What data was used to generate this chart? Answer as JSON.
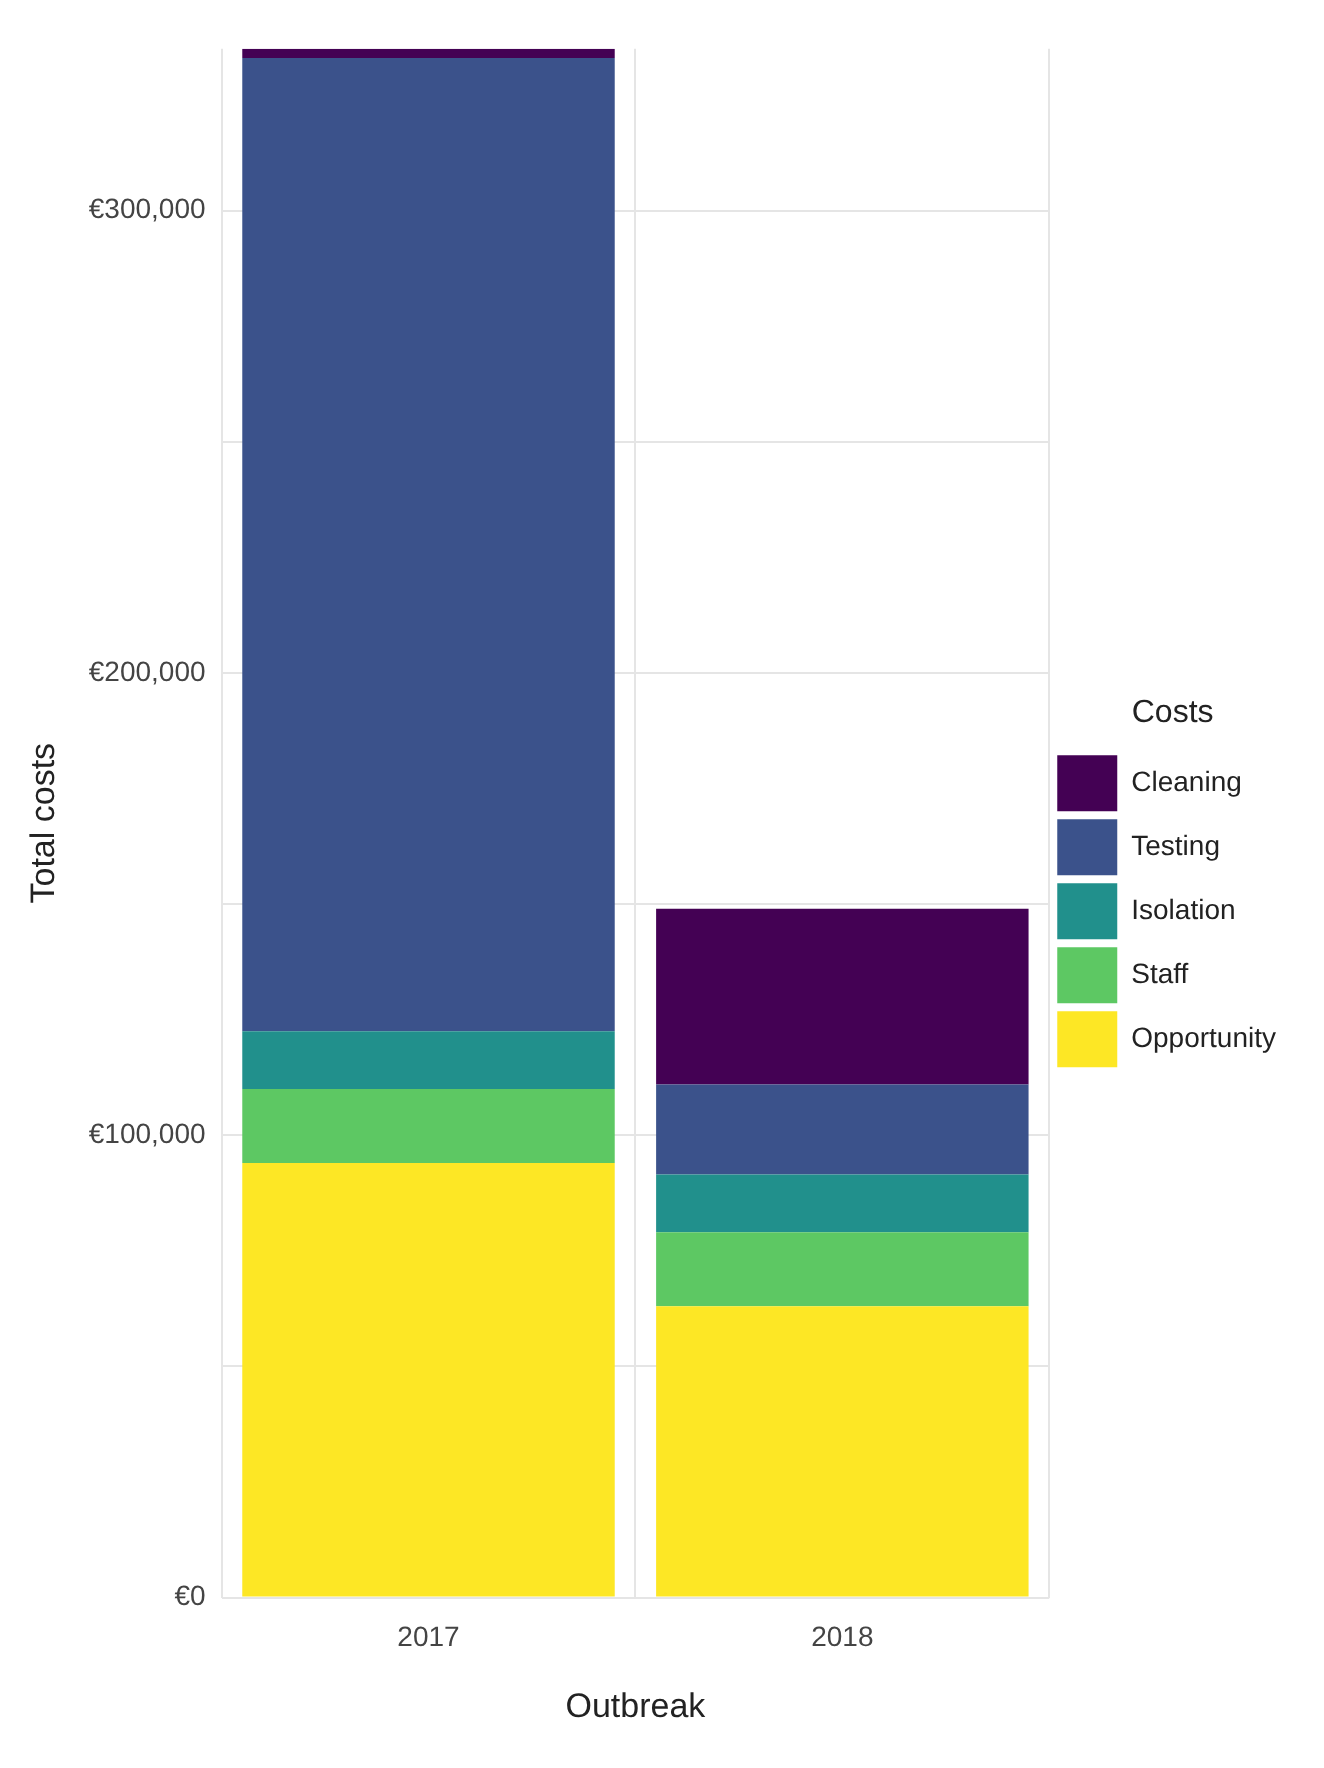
{
  "chart_data": {
    "type": "bar",
    "stacked": true,
    "xlabel": "Outbreak",
    "ylabel": "Total costs",
    "legend_title": "Costs",
    "legend": "right",
    "grid": true,
    "categories": [
      "2017",
      "2018"
    ],
    "series": [
      {
        "name": "Opportunity",
        "color": "#fde725",
        "values": [
          94000,
          63000
        ]
      },
      {
        "name": "Staff",
        "color": "#5dc863",
        "values": [
          16000,
          16000
        ]
      },
      {
        "name": "Isolation",
        "color": "#21908c",
        "values": [
          12500,
          12500
        ]
      },
      {
        "name": "Testing",
        "color": "#3b528b",
        "values": [
          210500,
          19500
        ]
      },
      {
        "name": "Cleaning",
        "color": "#440154",
        "values": [
          2000,
          38000
        ]
      }
    ],
    "ylim": [
      0,
      335000
    ],
    "yticks": [
      {
        "value": 0,
        "label": "€0"
      },
      {
        "value": 50000,
        "label": null
      },
      {
        "value": 100000,
        "label": "€100,000"
      },
      {
        "value": 150000,
        "label": null
      },
      {
        "value": 200000,
        "label": "€200,000"
      },
      {
        "value": 250000,
        "label": null
      },
      {
        "value": 300000,
        "label": "€300,000"
      }
    ]
  }
}
